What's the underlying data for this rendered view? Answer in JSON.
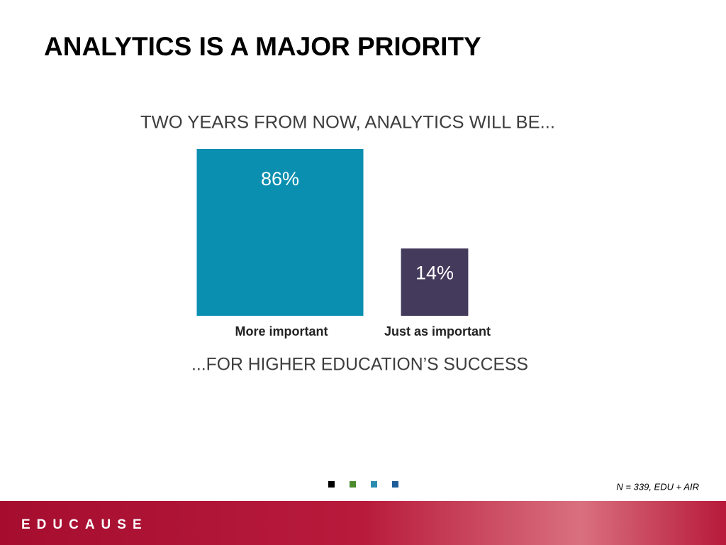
{
  "slide": {
    "title": "ANALYTICS IS A MAJOR PRIORITY",
    "note": "N = 339, EDU + AIR",
    "brand": "EDUCAUSE"
  },
  "chart_data": {
    "type": "area-square",
    "title": "TWO YEARS FROM NOW, ANALYTICS WILL BE...",
    "categories": [
      "More important",
      "Just as important"
    ],
    "values": [
      86,
      14
    ],
    "value_labels": [
      "86%",
      "14%"
    ],
    "colors": [
      "#0a8fb0",
      "#433a5c"
    ],
    "xlabel": "...FOR HIGHER EDUCATION’S SUCCESS"
  }
}
